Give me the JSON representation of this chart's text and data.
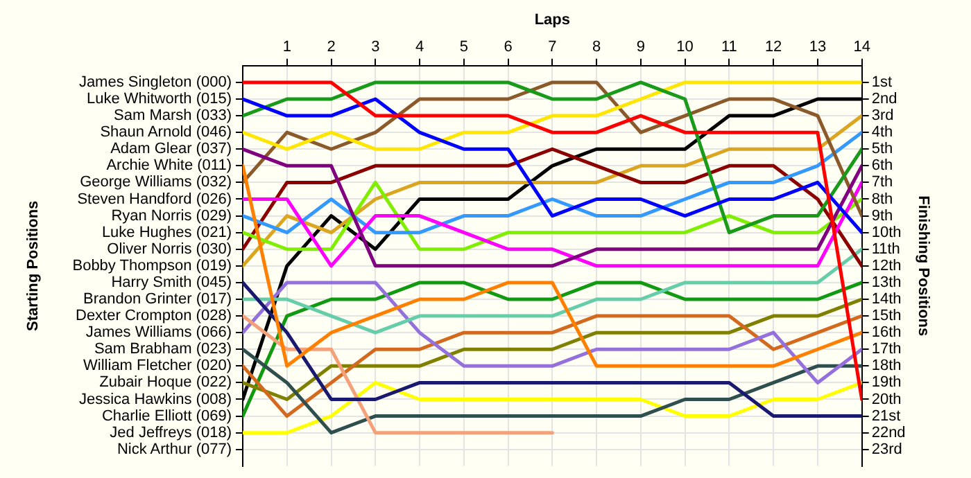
{
  "chart_data": {
    "type": "line",
    "xlabel": "Laps",
    "ylabel": "Finishing Positions",
    "x": [
      0,
      1,
      2,
      3,
      4,
      5,
      6,
      7,
      8,
      9,
      10,
      11,
      12,
      13,
      14
    ],
    "xlim": [
      0,
      14
    ],
    "xticks": [
      1,
      2,
      3,
      4,
      5,
      6,
      7,
      8,
      9,
      10,
      11,
      12,
      13,
      14
    ],
    "ylim": [
      24,
      0
    ],
    "yticks": [
      {
        "value": 1,
        "label": "1st"
      },
      {
        "value": 2,
        "label": "2nd"
      },
      {
        "value": 3,
        "label": "3rd"
      },
      {
        "value": 4,
        "label": "4th"
      },
      {
        "value": 5,
        "label": "5th"
      },
      {
        "value": 6,
        "label": "6th"
      },
      {
        "value": 7,
        "label": "7th"
      },
      {
        "value": 8,
        "label": "8th"
      },
      {
        "value": 9,
        "label": "9th"
      },
      {
        "value": 10,
        "label": "10th"
      },
      {
        "value": 11,
        "label": "11th"
      },
      {
        "value": 12,
        "label": "12th"
      },
      {
        "value": 13,
        "label": "13th"
      },
      {
        "value": 14,
        "label": "14th"
      },
      {
        "value": 15,
        "label": "15th"
      },
      {
        "value": 16,
        "label": "16th"
      },
      {
        "value": 17,
        "label": "17th"
      },
      {
        "value": 18,
        "label": "18th"
      },
      {
        "value": 19,
        "label": "19th"
      },
      {
        "value": 20,
        "label": "20th"
      },
      {
        "value": 21,
        "label": "21st"
      },
      {
        "value": 22,
        "label": "22nd"
      },
      {
        "value": 23,
        "label": "23rd"
      }
    ],
    "annotations": [
      "Starting Positions",
      "James Singleton (000)",
      "Luke Whitworth (015)",
      "Sam Marsh (033)",
      "Shaun Arnold (046)",
      "Adam Glear (037)",
      "Archie White (011)",
      "George Williams (032)",
      "Steven Handford (026)",
      "Ryan Norris (029)",
      "Luke Hughes (021)",
      "Oliver Norris (030)",
      "Bobby Thompson (019)",
      "Harry Smith (045)",
      "Brandon Grinter (017)",
      "Dexter Crompton (028)",
      "James Williams (066)",
      "Sam Brabham (023)",
      "William Fletcher (020)",
      "Zubair Hoque (022)",
      "Jessica Hawkins (008)",
      "Charlie Elliott (069)",
      "Jed Jeffreys (018)",
      "Nick Arthur (077)"
    ],
    "grid": true,
    "legend": false,
    "marker": "none",
    "line_style": "solid",
    "series": [
      {
        "color": "#ff0000",
        "values": [
          1,
          1,
          1,
          3,
          3,
          3,
          3,
          4,
          4,
          3,
          4,
          4,
          4,
          4,
          20
        ]
      },
      {
        "color": "#0000ff",
        "values": [
          2,
          3,
          3,
          2,
          4,
          5,
          5,
          9,
          8,
          8,
          9,
          8,
          8,
          7,
          10
        ]
      },
      {
        "color": "#1a9a1a",
        "values": [
          3,
          2,
          2,
          1,
          1,
          1,
          1,
          2,
          2,
          1,
          2,
          10,
          9,
          9,
          5
        ]
      },
      {
        "color": "#ffe600",
        "values": [
          4,
          5,
          4,
          5,
          5,
          4,
          4,
          3,
          3,
          2,
          1,
          1,
          1,
          1,
          1
        ]
      },
      {
        "color": "#800080",
        "values": [
          5,
          6,
          6,
          12,
          12,
          12,
          12,
          12,
          11,
          11,
          11,
          11,
          11,
          11,
          6
        ]
      },
      {
        "color": "#ff7f00",
        "values": [
          6,
          18,
          16,
          15,
          14,
          14,
          13,
          13,
          18,
          18,
          18,
          18,
          18,
          17,
          16
        ]
      },
      {
        "color": "#8b5a2b",
        "values": [
          7,
          4,
          5,
          4,
          2,
          2,
          2,
          1,
          1,
          4,
          3,
          2,
          2,
          3,
          9
        ]
      },
      {
        "color": "#ff00ff",
        "values": [
          8,
          8,
          12,
          9,
          9,
          10,
          11,
          11,
          12,
          12,
          12,
          12,
          12,
          12,
          7
        ]
      },
      {
        "color": "#3399ff",
        "values": [
          9,
          10,
          8,
          10,
          10,
          9,
          9,
          8,
          9,
          9,
          8,
          7,
          7,
          6,
          4
        ]
      },
      {
        "color": "#80ee00",
        "values": [
          10,
          11,
          11,
          7,
          11,
          11,
          10,
          10,
          10,
          10,
          10,
          9,
          10,
          10,
          8
        ]
      },
      {
        "color": "#8b0000",
        "values": [
          11,
          7,
          7,
          6,
          6,
          6,
          6,
          5,
          6,
          7,
          7,
          6,
          6,
          8,
          12
        ]
      },
      {
        "color": "#daa520",
        "values": [
          12,
          9,
          10,
          8,
          7,
          7,
          7,
          7,
          7,
          6,
          6,
          5,
          5,
          5,
          3
        ]
      },
      {
        "color": "#191970",
        "values": [
          13,
          16,
          20,
          20,
          19,
          19,
          19,
          19,
          19,
          19,
          19,
          19,
          21,
          21,
          21
        ]
      },
      {
        "color": "#66cdaa",
        "values": [
          14,
          14,
          15,
          16,
          15,
          15,
          15,
          15,
          14,
          14,
          13,
          13,
          13,
          13,
          11
        ]
      },
      {
        "color": "#f4a07a",
        "values": [
          15,
          17,
          17,
          22,
          22,
          22,
          22,
          22,
          null,
          null,
          null,
          null,
          null,
          null,
          null
        ]
      },
      {
        "color": "#9370db",
        "values": [
          16,
          13,
          13,
          13,
          16,
          18,
          18,
          18,
          17,
          17,
          17,
          17,
          16,
          19,
          17
        ]
      },
      {
        "color": "#2f4f4f",
        "values": [
          17,
          19,
          22,
          21,
          21,
          21,
          21,
          21,
          21,
          21,
          20,
          20,
          19,
          18,
          18
        ]
      },
      {
        "color": "#d2691e",
        "values": [
          18,
          21,
          19,
          17,
          17,
          16,
          16,
          16,
          15,
          15,
          15,
          15,
          17,
          16,
          15
        ]
      },
      {
        "color": "#808000",
        "values": [
          19,
          20,
          18,
          18,
          18,
          17,
          17,
          17,
          16,
          16,
          16,
          16,
          15,
          15,
          14
        ]
      },
      {
        "color": "#000000",
        "values": [
          20,
          12,
          9,
          11,
          8,
          8,
          8,
          6,
          5,
          5,
          5,
          3,
          3,
          2,
          2
        ]
      },
      {
        "color": "#119911",
        "values": [
          21,
          15,
          14,
          14,
          13,
          13,
          14,
          14,
          13,
          13,
          14,
          14,
          14,
          14,
          13
        ]
      },
      {
        "color": "#ffff00",
        "values": [
          22,
          22,
          21,
          19,
          20,
          20,
          20,
          20,
          20,
          20,
          21,
          21,
          20,
          20,
          19
        ]
      }
    ]
  }
}
